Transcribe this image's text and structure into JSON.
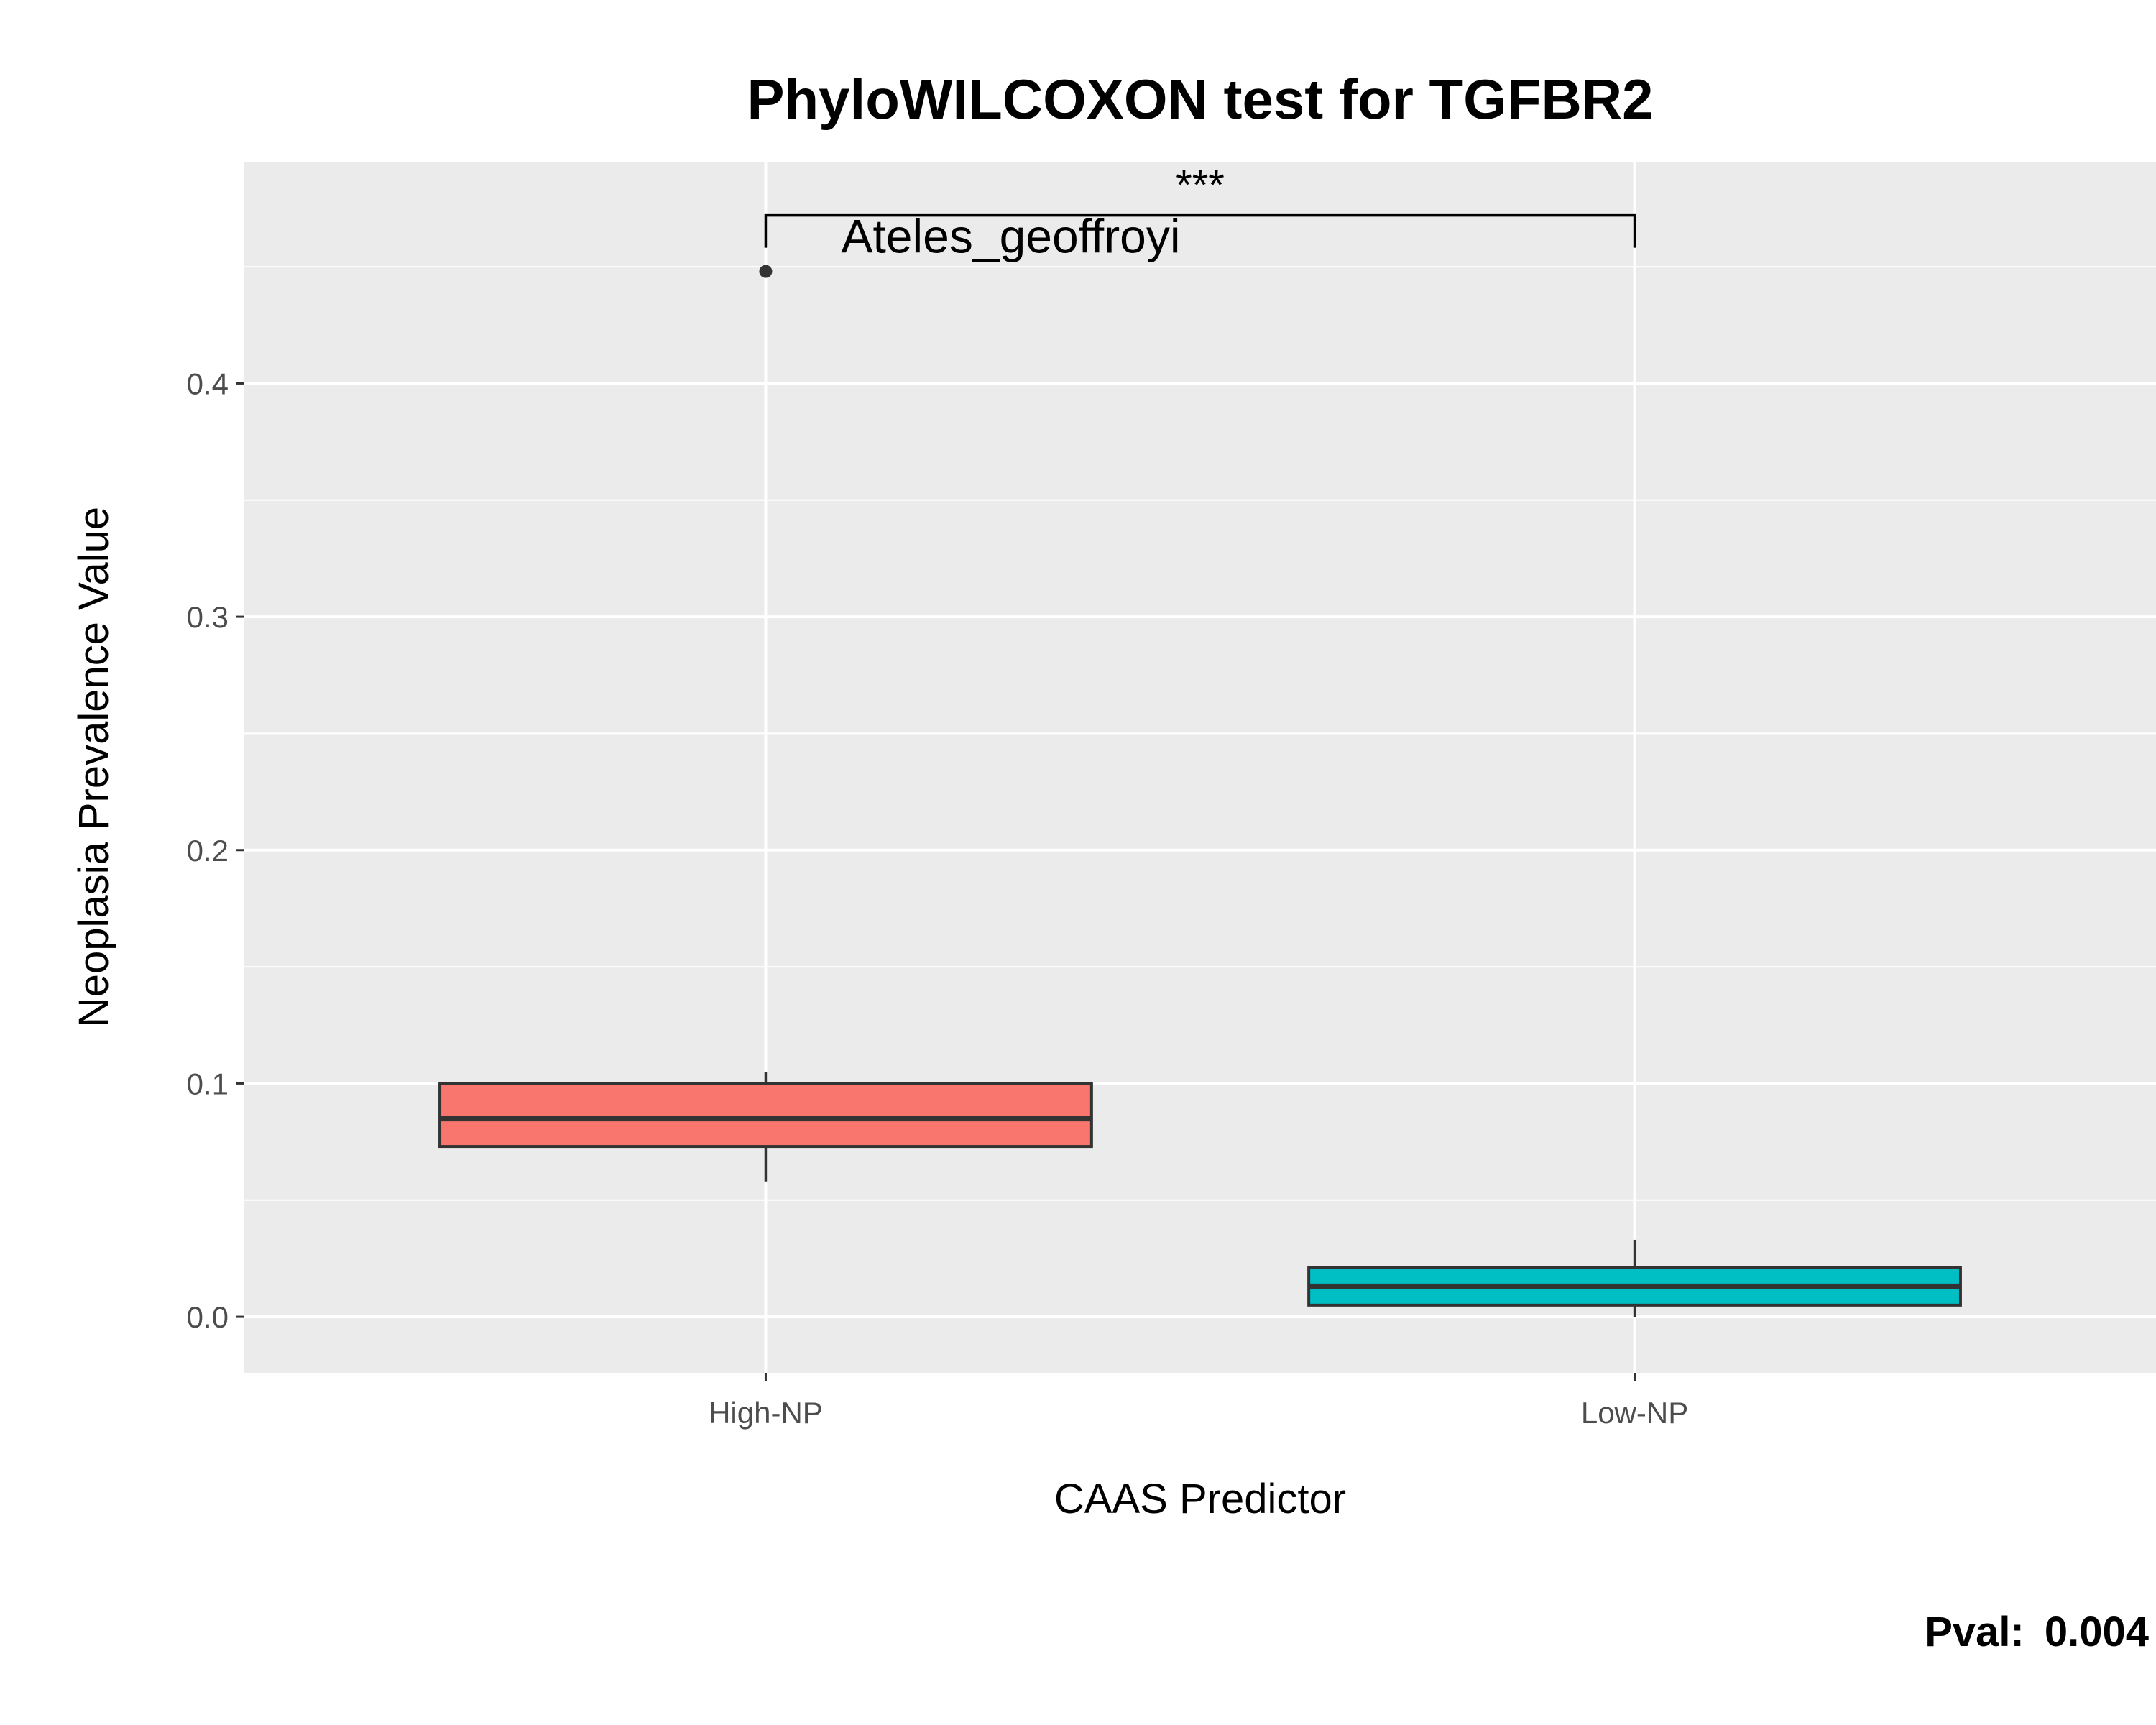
{
  "chart_data": {
    "type": "box",
    "title": "PhyloWILCOXON test for TGFBR2",
    "xlabel": "CAAS Predictor",
    "ylabel": "Neoplasia Prevalence Value",
    "ylim": [
      -0.024,
      0.495
    ],
    "yticks": [
      "0.0",
      "0.1",
      "0.2",
      "0.3",
      "0.4"
    ],
    "ytick_values": [
      0.0,
      0.1,
      0.2,
      0.3,
      0.4
    ],
    "grid": true,
    "legend": "none",
    "categories": [
      "High-NP",
      "Low-NP"
    ],
    "boxes": [
      {
        "category": "High-NP",
        "whisker_low": 0.058,
        "q1": 0.073,
        "median": 0.085,
        "q3": 0.1,
        "whisker_high": 0.105,
        "color": "#F8766D"
      },
      {
        "category": "Low-NP",
        "whisker_low": 0.0,
        "q1": 0.005,
        "median": 0.013,
        "q3": 0.021,
        "whisker_high": 0.033,
        "color": "#00BFC4"
      }
    ],
    "outliers": [
      {
        "category": "High-NP",
        "value": 0.448,
        "label": "Ateles_geoffroyi"
      }
    ],
    "significance": {
      "label": "***",
      "from": "High-NP",
      "to": "Low-NP",
      "y": 0.472
    },
    "annotation": {
      "prefix": "Pval:",
      "value": "0.004"
    }
  },
  "colors": {
    "panel": "#EBEBEB",
    "grid": "#FFFFFF",
    "box_outline": "#333333",
    "text": "#000000",
    "tick_text": "#4D4D4D"
  }
}
